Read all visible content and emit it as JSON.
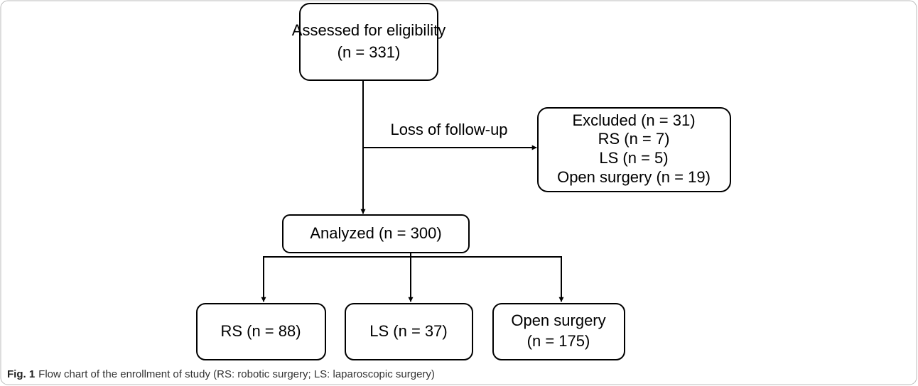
{
  "nodes": [
    {
      "lines": [
        "Assessed for eligibility",
        "(n = 331)"
      ]
    },
    {
      "lines": [
        "Excluded (n = 31)",
        "RS (n = 7)",
        "LS (n = 5)",
        "Open surgery (n = 19)"
      ]
    },
    {
      "lines": [
        "Analyzed (n = 300)"
      ]
    },
    {
      "lines": [
        "RS (n = 88)"
      ]
    },
    {
      "lines": [
        "LS (n = 37)"
      ]
    },
    {
      "lines": [
        "Open surgery",
        "(n = 175)"
      ]
    }
  ],
  "edge_label": "Loss of follow-up",
  "caption": {
    "label": "Fig. 1",
    "text": "Flow chart of the enrollment of study (RS: robotic surgery; LS: laparoscopic surgery)"
  }
}
